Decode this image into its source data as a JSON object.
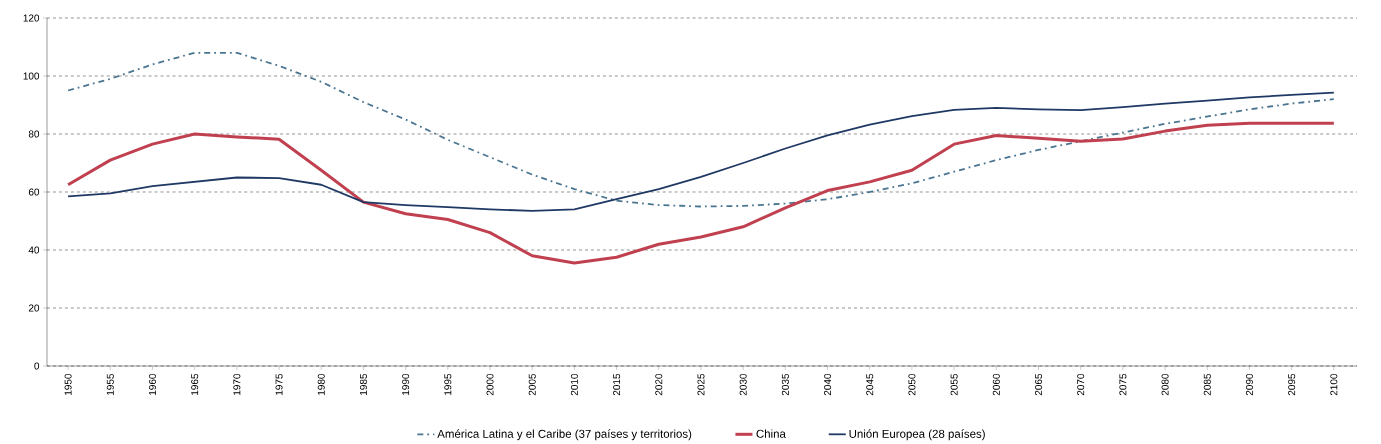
{
  "chart_data": {
    "type": "line",
    "categories": [
      "1950",
      "1955",
      "1960",
      "1965",
      "1970",
      "1975",
      "1980",
      "1985",
      "1990",
      "1995",
      "2000",
      "2005",
      "2010",
      "2015",
      "2020",
      "2025",
      "2030",
      "2035",
      "2040",
      "2045",
      "2050",
      "2055",
      "2060",
      "2065",
      "2070",
      "2075",
      "2080",
      "2085",
      "2090",
      "2095",
      "2100"
    ],
    "series": [
      {
        "name": "América Latina y el Caribe (37 países y territorios)",
        "color": "#4a7591",
        "line_style": "dashdot",
        "values": [
          95,
          99,
          104,
          108,
          108,
          103.5,
          98,
          91,
          85,
          78,
          72,
          66,
          61,
          57,
          55.5,
          55,
          55.2,
          56,
          57.5,
          60,
          63,
          67,
          71,
          74.5,
          77.5,
          80.5,
          83.5,
          86,
          88.5,
          90.5,
          92
        ]
      },
      {
        "name": "China",
        "color": "#c0404f",
        "line_style": "solid",
        "values": [
          62.5,
          71,
          76.5,
          80,
          79,
          78.2,
          67.5,
          56.5,
          52.5,
          50.5,
          46,
          38,
          35.5,
          37.5,
          42,
          44.5,
          48,
          54.5,
          60.5,
          63.5,
          67.5,
          76.5,
          79.5,
          78.5,
          77.5,
          78.3,
          81,
          83,
          83.7,
          83.7,
          83.7
        ]
      },
      {
        "name": "Unión Europea (28 países)",
        "color": "#1f3864",
        "line_style": "solid",
        "values": [
          58.5,
          59.5,
          62,
          63.5,
          65,
          64.8,
          62.5,
          56.5,
          55.5,
          54.8,
          54,
          53.5,
          54,
          57.5,
          61,
          65.2,
          70,
          75,
          79.5,
          83.2,
          86.2,
          88.3,
          89,
          88.5,
          88.2,
          89.3,
          90.5,
          91.5,
          92.6,
          93.5,
          94.3
        ]
      }
    ],
    "ylim": [
      0,
      120
    ],
    "yticks": [
      0,
      20,
      40,
      60,
      80,
      100,
      120
    ],
    "grid": "y",
    "legend": "bottom",
    "marker": "none"
  }
}
